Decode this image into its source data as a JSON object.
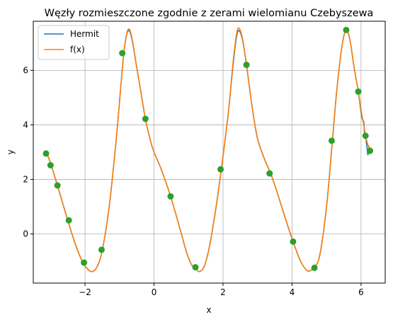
{
  "chart_data": {
    "type": "line",
    "title": "Węzły rozmieszczone zgodnie z zerami wielomianu Czebyszewa",
    "xlabel": "x",
    "ylabel": "y",
    "xlim": [
      -3.5,
      6.7
    ],
    "ylim": [
      -1.8,
      7.8
    ],
    "xticks": [
      {
        "value": -2,
        "label": "−2"
      },
      {
        "value": 0,
        "label": "0"
      },
      {
        "value": 2,
        "label": "2"
      },
      {
        "value": 4,
        "label": "4"
      },
      {
        "value": 6,
        "label": "6"
      }
    ],
    "yticks": [
      {
        "value": 0,
        "label": "0"
      },
      {
        "value": 2,
        "label": "2"
      },
      {
        "value": 4,
        "label": "4"
      },
      {
        "value": 6,
        "label": "6"
      }
    ],
    "grid": true,
    "legend": {
      "placement": "top-left",
      "entries": [
        "Hermit",
        "f(x)"
      ]
    },
    "series": [
      {
        "name": "Hermit",
        "color": "#1f77b4",
        "points": [
          [
            -3.1,
            2.95
          ],
          [
            -2.98,
            2.52
          ],
          [
            -2.8,
            1.78
          ],
          [
            -2.5,
            0.5
          ],
          [
            -2.3,
            -0.3
          ],
          [
            -2.1,
            -0.95
          ],
          [
            -1.95,
            -1.25
          ],
          [
            -1.8,
            -1.38
          ],
          [
            -1.65,
            -1.2
          ],
          [
            -1.5,
            -0.6
          ],
          [
            -1.3,
            1.0
          ],
          [
            -1.1,
            3.4
          ],
          [
            -0.95,
            5.6
          ],
          [
            -0.85,
            6.9
          ],
          [
            -0.75,
            7.45
          ],
          [
            -0.65,
            7.2
          ],
          [
            -0.5,
            6.1
          ],
          [
            -0.38,
            5.2
          ],
          [
            -0.25,
            4.22
          ],
          [
            -0.1,
            3.4
          ],
          [
            0.0,
            3.0
          ],
          [
            0.2,
            2.4
          ],
          [
            0.48,
            1.38
          ],
          [
            0.75,
            0.2
          ],
          [
            0.95,
            -0.7
          ],
          [
            1.1,
            -1.15
          ],
          [
            1.2,
            -1.22
          ],
          [
            1.3,
            -1.38
          ],
          [
            1.45,
            -1.2
          ],
          [
            1.6,
            -0.5
          ],
          [
            1.8,
            1.0
          ],
          [
            1.95,
            2.37
          ],
          [
            2.15,
            4.4
          ],
          [
            2.3,
            6.3
          ],
          [
            2.42,
            7.4
          ],
          [
            2.55,
            7.2
          ],
          [
            2.68,
            6.2
          ],
          [
            2.85,
            4.6
          ],
          [
            3.0,
            3.5
          ],
          [
            3.2,
            2.75
          ],
          [
            3.38,
            2.22
          ],
          [
            3.55,
            1.6
          ],
          [
            3.8,
            0.6
          ],
          [
            4.03,
            -0.28
          ],
          [
            4.25,
            -1.0
          ],
          [
            4.45,
            -1.35
          ],
          [
            4.62,
            -1.24
          ],
          [
            4.8,
            -0.8
          ],
          [
            5.0,
            1.0
          ],
          [
            5.17,
            3.42
          ],
          [
            5.3,
            5.3
          ],
          [
            5.45,
            6.9
          ],
          [
            5.57,
            7.48
          ],
          [
            5.68,
            7.1
          ],
          [
            5.8,
            6.1
          ],
          [
            5.92,
            5.22
          ],
          [
            6.02,
            4.3
          ],
          [
            6.08,
            4.1
          ],
          [
            6.1,
            3.7
          ],
          [
            6.13,
            3.6
          ],
          [
            6.17,
            3.2
          ],
          [
            6.2,
            2.9
          ],
          [
            6.23,
            3.2
          ],
          [
            6.26,
            3.05
          ]
        ]
      },
      {
        "name": "f(x)",
        "color": "#ff7f0e",
        "points": [
          [
            -3.1,
            2.95
          ],
          [
            -2.98,
            2.52
          ],
          [
            -2.8,
            1.78
          ],
          [
            -2.5,
            0.5
          ],
          [
            -2.3,
            -0.3
          ],
          [
            -2.1,
            -0.95
          ],
          [
            -1.95,
            -1.25
          ],
          [
            -1.8,
            -1.38
          ],
          [
            -1.65,
            -1.2
          ],
          [
            -1.5,
            -0.6
          ],
          [
            -1.3,
            1.0
          ],
          [
            -1.1,
            3.4
          ],
          [
            -0.95,
            5.6
          ],
          [
            -0.85,
            6.9
          ],
          [
            -0.75,
            7.5
          ],
          [
            -0.65,
            7.25
          ],
          [
            -0.5,
            6.1
          ],
          [
            -0.38,
            5.2
          ],
          [
            -0.25,
            4.22
          ],
          [
            -0.1,
            3.4
          ],
          [
            0.0,
            3.0
          ],
          [
            0.2,
            2.4
          ],
          [
            0.48,
            1.38
          ],
          [
            0.75,
            0.2
          ],
          [
            0.95,
            -0.7
          ],
          [
            1.1,
            -1.15
          ],
          [
            1.2,
            -1.22
          ],
          [
            1.3,
            -1.38
          ],
          [
            1.45,
            -1.2
          ],
          [
            1.6,
            -0.5
          ],
          [
            1.8,
            1.0
          ],
          [
            1.95,
            2.37
          ],
          [
            2.15,
            4.4
          ],
          [
            2.3,
            6.4
          ],
          [
            2.42,
            7.5
          ],
          [
            2.55,
            7.25
          ],
          [
            2.68,
            6.2
          ],
          [
            2.85,
            4.6
          ],
          [
            3.0,
            3.5
          ],
          [
            3.2,
            2.75
          ],
          [
            3.38,
            2.22
          ],
          [
            3.55,
            1.6
          ],
          [
            3.8,
            0.6
          ],
          [
            4.03,
            -0.28
          ],
          [
            4.25,
            -1.0
          ],
          [
            4.45,
            -1.35
          ],
          [
            4.62,
            -1.24
          ],
          [
            4.8,
            -0.8
          ],
          [
            5.0,
            1.0
          ],
          [
            5.17,
            3.42
          ],
          [
            5.3,
            5.3
          ],
          [
            5.45,
            6.9
          ],
          [
            5.57,
            7.5
          ],
          [
            5.68,
            7.1
          ],
          [
            5.8,
            6.1
          ],
          [
            5.92,
            5.22
          ],
          [
            6.02,
            4.4
          ],
          [
            6.08,
            4.0
          ],
          [
            6.13,
            3.6
          ],
          [
            6.18,
            3.35
          ],
          [
            6.22,
            3.2
          ],
          [
            6.26,
            3.05
          ]
        ]
      },
      {
        "name": "",
        "type": "scatter",
        "color": "#2ca02c",
        "points": [
          [
            -3.13,
            2.95
          ],
          [
            -3.0,
            2.52
          ],
          [
            -2.8,
            1.78
          ],
          [
            -2.47,
            0.5
          ],
          [
            -2.03,
            -1.05
          ],
          [
            -1.52,
            -0.58
          ],
          [
            -0.92,
            6.63
          ],
          [
            -0.25,
            4.22
          ],
          [
            0.48,
            1.38
          ],
          [
            1.2,
            -1.22
          ],
          [
            1.93,
            2.37
          ],
          [
            2.68,
            6.2
          ],
          [
            3.35,
            2.22
          ],
          [
            4.03,
            -0.28
          ],
          [
            4.65,
            -1.24
          ],
          [
            5.15,
            3.42
          ],
          [
            5.57,
            7.48
          ],
          [
            5.92,
            5.22
          ],
          [
            6.13,
            3.6
          ],
          [
            6.26,
            3.05
          ]
        ]
      }
    ]
  }
}
